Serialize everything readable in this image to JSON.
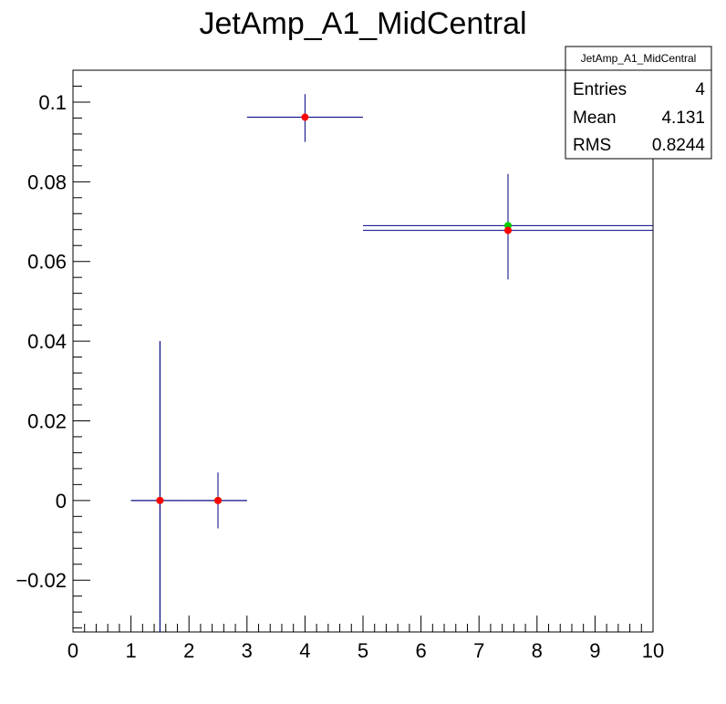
{
  "chart_data": {
    "type": "scatter",
    "title": "JetAmp_A1_MidCentral",
    "xlabel": "",
    "ylabel": "",
    "xlim": [
      0,
      10
    ],
    "ylim": [
      -0.033,
      0.108
    ],
    "x_ticks": [
      0,
      1,
      2,
      3,
      4,
      5,
      6,
      7,
      8,
      9,
      10
    ],
    "x_tick_labels": [
      "0",
      "1",
      "2",
      "3",
      "4",
      "5",
      "6",
      "7",
      "8",
      "9",
      "10"
    ],
    "y_ticks": [
      -0.02,
      0,
      0.02,
      0.04,
      0.06,
      0.08,
      0.1
    ],
    "y_tick_labels": [
      "−0.02",
      "0",
      "0.02",
      "0.04",
      "0.06",
      "0.08",
      "0.1"
    ],
    "grid": false,
    "series": [
      {
        "color": "#00cc00",
        "points": [
          {
            "x": 1.5,
            "y": 0.0,
            "xlo": 1.0,
            "xhi": 2.0,
            "ylo": -0.036,
            "yhi": 0.04
          },
          {
            "x": 2.5,
            "y": 0.0,
            "xlo": 2.0,
            "xhi": 3.0,
            "ylo": -0.007,
            "yhi": 0.007
          },
          {
            "x": 7.5,
            "y": 0.069,
            "xlo": 5.0,
            "xhi": 10.0,
            "ylo": 0.069,
            "yhi": 0.069
          }
        ]
      },
      {
        "color": "#ff0000",
        "points": [
          {
            "x": 1.5,
            "y": 0.0,
            "xlo": 1.0,
            "xhi": 2.0,
            "ylo": -0.036,
            "yhi": 0.04
          },
          {
            "x": 2.5,
            "y": 0.0,
            "xlo": 2.0,
            "xhi": 3.0,
            "ylo": -0.007,
            "yhi": 0.007
          },
          {
            "x": 4.0,
            "y": 0.0962,
            "xlo": 3.0,
            "xhi": 5.0,
            "ylo": 0.09,
            "yhi": 0.102
          },
          {
            "x": 7.5,
            "y": 0.0678,
            "xlo": 5.0,
            "xhi": 10.0,
            "ylo": 0.0555,
            "yhi": 0.082
          }
        ]
      }
    ],
    "error_bar_color": "#000080",
    "stats_box": {
      "title": "JetAmp_A1_MidCentral",
      "rows": [
        {
          "label": "Entries",
          "value": "4"
        },
        {
          "label": "Mean",
          "value": "4.131"
        },
        {
          "label": "RMS",
          "value": "0.8244"
        }
      ]
    }
  }
}
